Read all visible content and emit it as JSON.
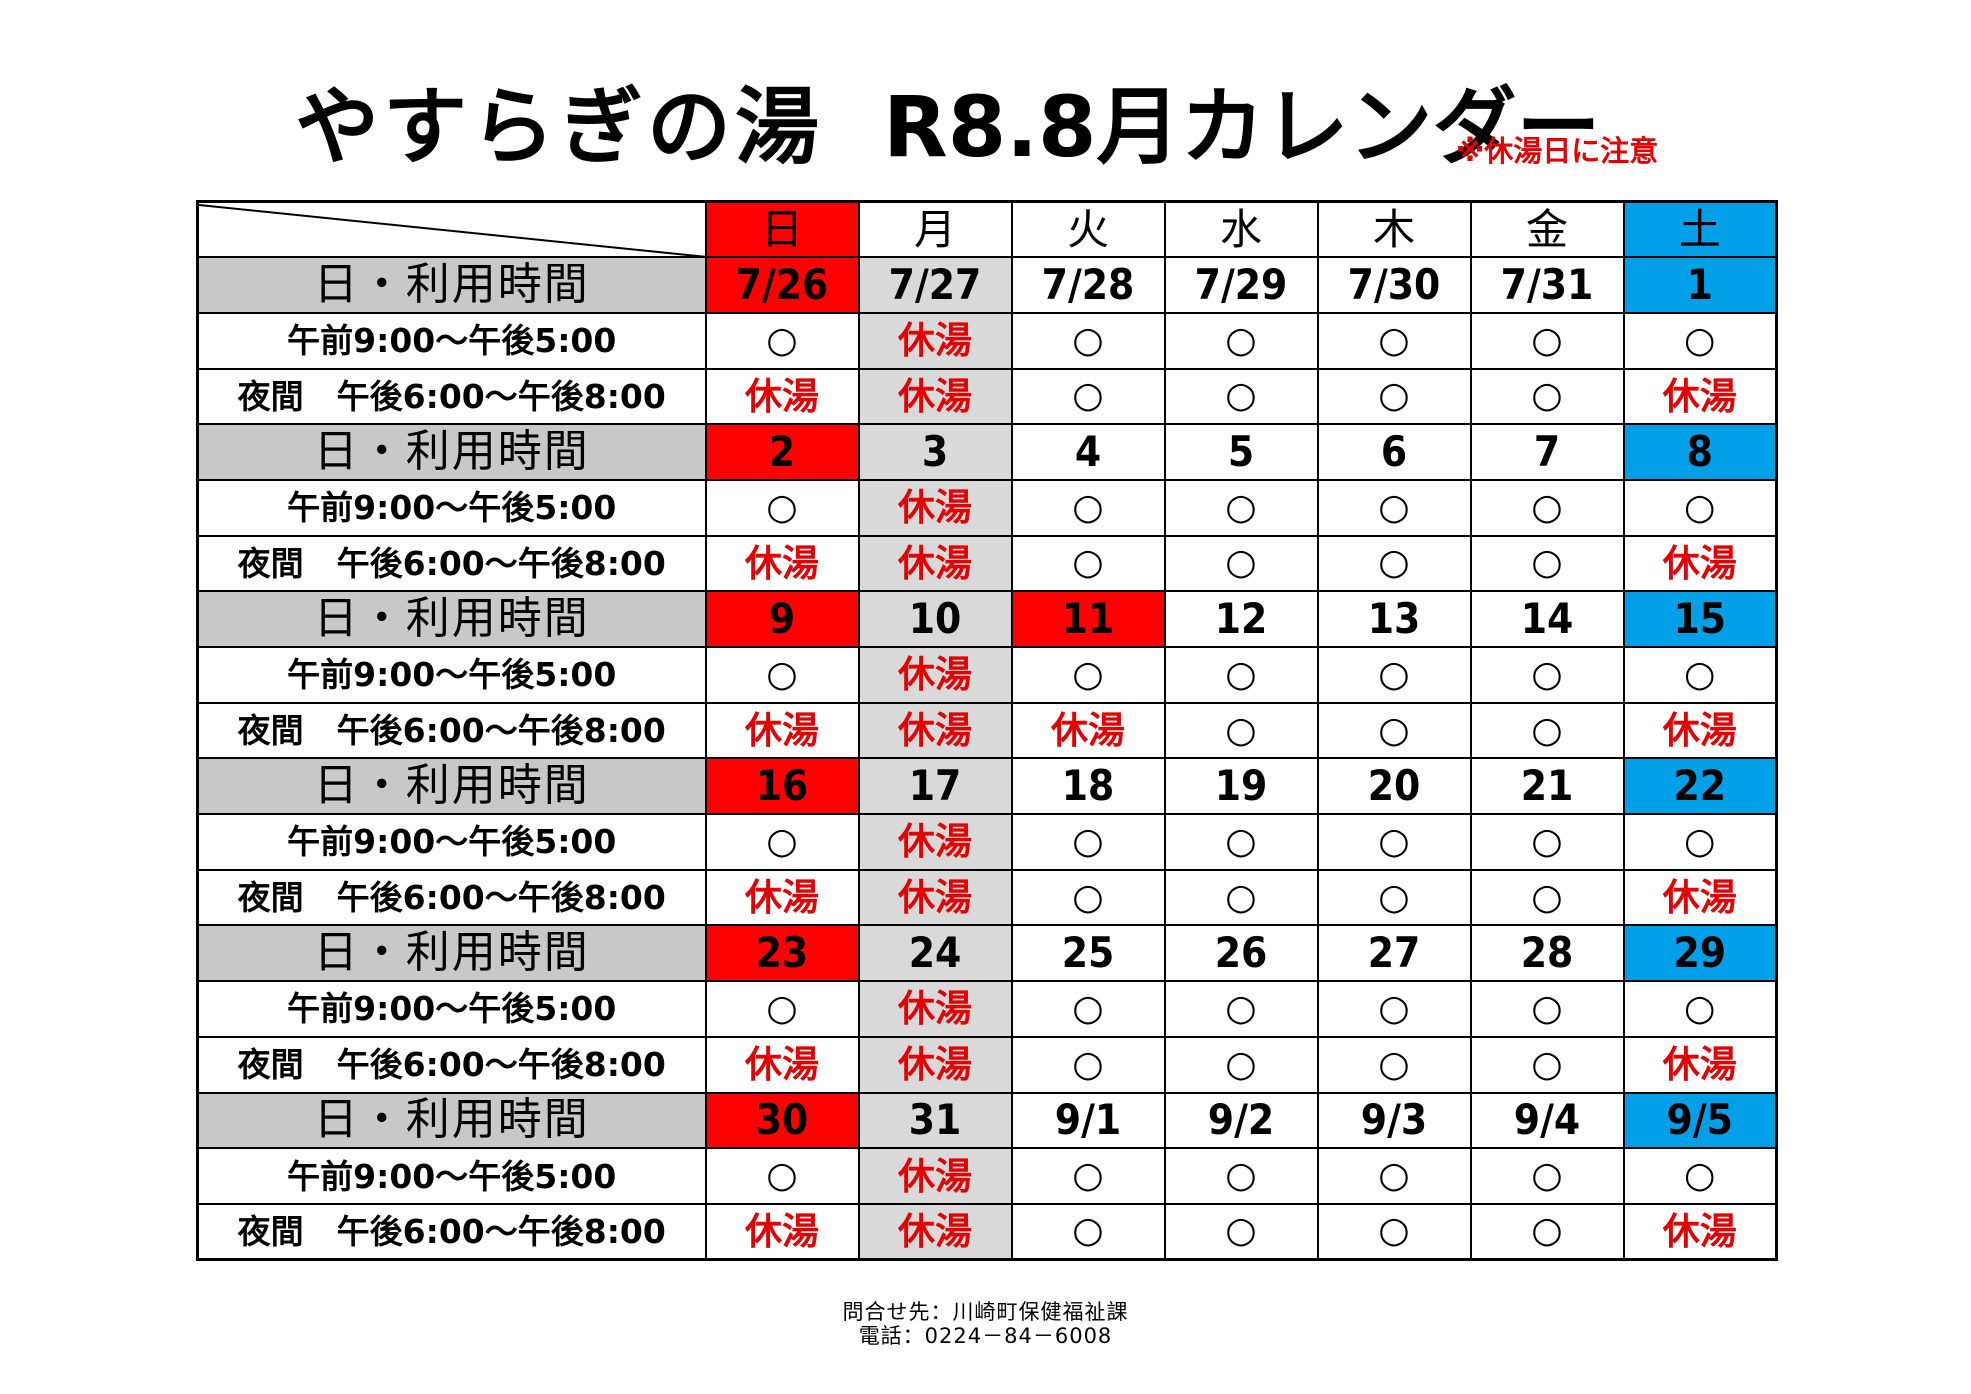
{
  "title": {
    "name": "やすらぎの湯",
    "month": "R8.8月カレンダー"
  },
  "notice": "※休湯日に注意",
  "weekdays": [
    "日",
    "月",
    "火",
    "水",
    "木",
    "金",
    "土"
  ],
  "date_row_label": "日・利用時間",
  "slots": {
    "morning": "午前9:00～午後5:00",
    "evening": "夜間　午後6:00～午後8:00"
  },
  "symbols": {
    "open": "○",
    "closed": "休湯"
  },
  "colors": {
    "sunday": "#ff0000",
    "saturday": "#00a0e9",
    "monday": "#d9d9d9",
    "closed_text": "#e30000",
    "date_label_bg": "#c8c8c8"
  },
  "weeks": [
    {
      "dates": [
        "7/26",
        "7/27",
        "7/28",
        "7/29",
        "7/30",
        "7/31",
        "1"
      ],
      "holiday_cols": [],
      "morning": [
        "○",
        "休湯",
        "○",
        "○",
        "○",
        "○",
        "○"
      ],
      "evening": [
        "休湯",
        "休湯",
        "○",
        "○",
        "○",
        "○",
        "休湯"
      ]
    },
    {
      "dates": [
        "2",
        "3",
        "4",
        "5",
        "6",
        "7",
        "8"
      ],
      "holiday_cols": [],
      "morning": [
        "○",
        "休湯",
        "○",
        "○",
        "○",
        "○",
        "○"
      ],
      "evening": [
        "休湯",
        "休湯",
        "○",
        "○",
        "○",
        "○",
        "休湯"
      ]
    },
    {
      "dates": [
        "9",
        "10",
        "11",
        "12",
        "13",
        "14",
        "15"
      ],
      "holiday_cols": [
        2
      ],
      "morning": [
        "○",
        "休湯",
        "○",
        "○",
        "○",
        "○",
        "○"
      ],
      "evening": [
        "休湯",
        "休湯",
        "休湯",
        "○",
        "○",
        "○",
        "休湯"
      ]
    },
    {
      "dates": [
        "16",
        "17",
        "18",
        "19",
        "20",
        "21",
        "22"
      ],
      "holiday_cols": [],
      "morning": [
        "○",
        "休湯",
        "○",
        "○",
        "○",
        "○",
        "○"
      ],
      "evening": [
        "休湯",
        "休湯",
        "○",
        "○",
        "○",
        "○",
        "休湯"
      ]
    },
    {
      "dates": [
        "23",
        "24",
        "25",
        "26",
        "27",
        "28",
        "29"
      ],
      "holiday_cols": [],
      "morning": [
        "○",
        "休湯",
        "○",
        "○",
        "○",
        "○",
        "○"
      ],
      "evening": [
        "休湯",
        "休湯",
        "○",
        "○",
        "○",
        "○",
        "休湯"
      ]
    },
    {
      "dates": [
        "30",
        "31",
        "9/1",
        "9/2",
        "9/3",
        "9/4",
        "9/5"
      ],
      "holiday_cols": [],
      "morning": [
        "○",
        "休湯",
        "○",
        "○",
        "○",
        "○",
        "○"
      ],
      "evening": [
        "休湯",
        "休湯",
        "○",
        "○",
        "○",
        "○",
        "休湯"
      ]
    }
  ],
  "footer": {
    "contact": "問合せ先：川崎町保健福祉課",
    "phone": "電話：0224－84－6008"
  }
}
